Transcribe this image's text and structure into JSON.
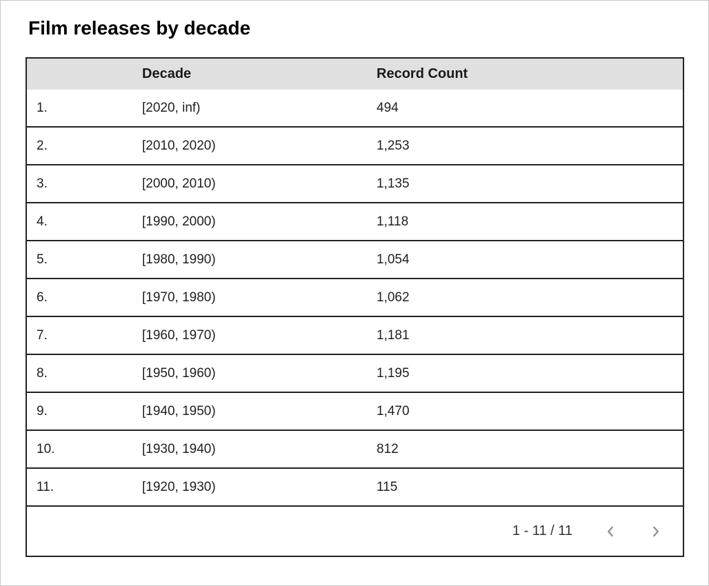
{
  "page": {
    "title": "Film releases by decade"
  },
  "table": {
    "header": {
      "index_label": "",
      "decade_label": "Decade",
      "count_label": "Record Count"
    },
    "rows": [
      {
        "index": "1.",
        "decade": "[2020, inf)",
        "count": "494"
      },
      {
        "index": "2.",
        "decade": "[2010, 2020)",
        "count": "1,253"
      },
      {
        "index": "3.",
        "decade": "[2000, 2010)",
        "count": "1,135"
      },
      {
        "index": "4.",
        "decade": "[1990, 2000)",
        "count": "1,118"
      },
      {
        "index": "5.",
        "decade": "[1980, 1990)",
        "count": "1,054"
      },
      {
        "index": "6.",
        "decade": "[1970, 1980)",
        "count": "1,062"
      },
      {
        "index": "7.",
        "decade": "[1960, 1970)",
        "count": "1,181"
      },
      {
        "index": "8.",
        "decade": "[1950, 1960)",
        "count": "1,195"
      },
      {
        "index": "9.",
        "decade": "[1940, 1950)",
        "count": "1,470"
      },
      {
        "index": "10.",
        "decade": "[1930, 1940)",
        "count": "812"
      },
      {
        "index": "11.",
        "decade": "[1920, 1930)",
        "count": "115"
      }
    ],
    "pagination": {
      "range_label": "1 - 11 / 11",
      "prev_icon": "chevron-left",
      "next_icon": "chevron-right"
    }
  },
  "colors": {
    "header_bg": "#e0e0e0",
    "border": "#222222",
    "text": "#1f1f1f",
    "chevron": "#8f8f8f",
    "page_border": "#c9c9c9"
  },
  "chart_data": {
    "type": "table",
    "title": "Film releases by decade",
    "columns": [
      "Decade",
      "Record Count"
    ],
    "categories": [
      "[2020, inf)",
      "[2010, 2020)",
      "[2000, 2010)",
      "[1990, 2000)",
      "[1980, 1990)",
      "[1970, 1980)",
      "[1960, 1970)",
      "[1950, 1960)",
      "[1940, 1950)",
      "[1930, 1940)",
      "[1920, 1930)"
    ],
    "values": [
      494,
      1253,
      1135,
      1118,
      1054,
      1062,
      1181,
      1195,
      1470,
      812,
      115
    ],
    "layout": {
      "pagination": "1 - 11 / 11",
      "grid": "horizontal-row-borders",
      "header_shaded": true
    }
  }
}
